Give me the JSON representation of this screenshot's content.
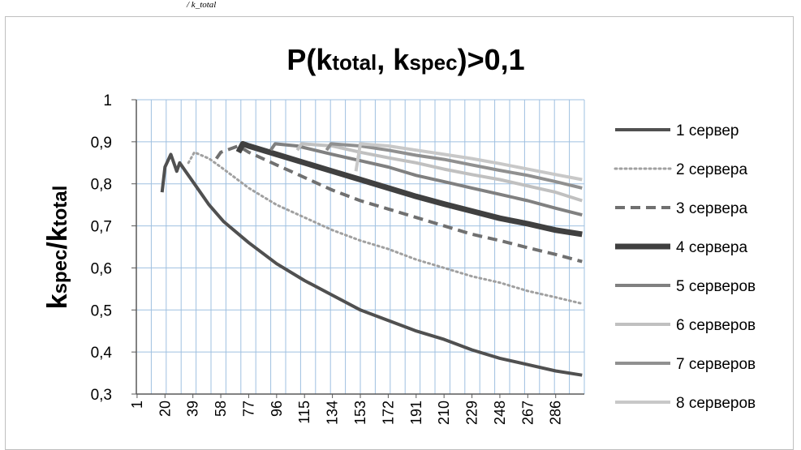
{
  "top_fragment": "/ k_total",
  "chart_data": {
    "type": "line",
    "title": {
      "prefix": "P(k",
      "sub1": "total",
      "mid": ", k",
      "sub2": "spec",
      "suffix": ")>0,1"
    },
    "ylabel": {
      "k1": "k",
      "s1": "spec",
      "slash": "/k",
      "s2": "total"
    },
    "xlabel": "",
    "ylim": [
      0.3,
      1.0
    ],
    "y_ticks": [
      "0,3",
      "0,4",
      "0,5",
      "0,6",
      "0,7",
      "0,8",
      "0,9",
      "1"
    ],
    "x_range": [
      1,
      305
    ],
    "x_ticks": [
      "1",
      "20",
      "39",
      "58",
      "77",
      "96",
      "115",
      "134",
      "153",
      "172",
      "191",
      "210",
      "229",
      "248",
      "267",
      "286"
    ],
    "grid": true,
    "legend_position": "right",
    "series": [
      {
        "name": "1 сервер",
        "color": "#505050",
        "style": "solid",
        "width": 4,
        "x": [
          18,
          20,
          24,
          28,
          30,
          34,
          40,
          50,
          60,
          77,
          96,
          115,
          134,
          153,
          172,
          191,
          210,
          229,
          248,
          267,
          286,
          304
        ],
        "y": [
          0.78,
          0.84,
          0.87,
          0.83,
          0.85,
          0.83,
          0.8,
          0.75,
          0.71,
          0.66,
          0.61,
          0.57,
          0.535,
          0.5,
          0.475,
          0.45,
          0.43,
          0.405,
          0.385,
          0.37,
          0.355,
          0.345
        ]
      },
      {
        "name": "2 сервера",
        "color": "#a0a0a0",
        "style": "dotted",
        "width": 3,
        "x": [
          36,
          40,
          50,
          58,
          77,
          96,
          115,
          134,
          153,
          172,
          191,
          210,
          229,
          248,
          267,
          286,
          304
        ],
        "y": [
          0.85,
          0.875,
          0.86,
          0.84,
          0.79,
          0.75,
          0.72,
          0.69,
          0.665,
          0.645,
          0.62,
          0.6,
          0.58,
          0.565,
          0.545,
          0.53,
          0.515
        ]
      },
      {
        "name": "3 сервера",
        "color": "#707070",
        "style": "dashed",
        "width": 4,
        "x": [
          55,
          58,
          70,
          77,
          96,
          115,
          134,
          153,
          172,
          191,
          210,
          229,
          248,
          267,
          286,
          304
        ],
        "y": [
          0.86,
          0.875,
          0.89,
          0.875,
          0.845,
          0.815,
          0.785,
          0.76,
          0.74,
          0.72,
          0.7,
          0.68,
          0.665,
          0.648,
          0.632,
          0.615
        ]
      },
      {
        "name": "4 сервера",
        "color": "#404040",
        "style": "solid",
        "width": 7,
        "x": [
          70,
          73,
          77,
          96,
          115,
          134,
          153,
          172,
          191,
          210,
          229,
          248,
          267,
          286,
          304
        ],
        "y": [
          0.875,
          0.895,
          0.89,
          0.87,
          0.85,
          0.83,
          0.81,
          0.79,
          0.77,
          0.752,
          0.735,
          0.718,
          0.705,
          0.69,
          0.68
        ]
      },
      {
        "name": "5 серверов",
        "color": "#808080",
        "style": "solid",
        "width": 4,
        "x": [
          92,
          95,
          110,
          134,
          153,
          172,
          191,
          210,
          229,
          248,
          267,
          286,
          304
        ],
        "y": [
          0.88,
          0.895,
          0.89,
          0.87,
          0.855,
          0.84,
          0.82,
          0.805,
          0.79,
          0.775,
          0.76,
          0.742,
          0.726
        ]
      },
      {
        "name": "6 серверов",
        "color": "#c0c0c0",
        "style": "solid",
        "width": 4,
        "x": [
          110,
          113,
          134,
          153,
          172,
          191,
          210,
          229,
          248,
          267,
          286,
          304
        ],
        "y": [
          0.88,
          0.895,
          0.89,
          0.875,
          0.862,
          0.85,
          0.835,
          0.822,
          0.81,
          0.795,
          0.78,
          0.76
        ]
      },
      {
        "name": "7 серверов",
        "color": "#909090",
        "style": "solid",
        "width": 4,
        "x": [
          130,
          133,
          153,
          172,
          191,
          210,
          229,
          248,
          267,
          286,
          304
        ],
        "y": [
          0.88,
          0.895,
          0.89,
          0.88,
          0.868,
          0.858,
          0.845,
          0.832,
          0.82,
          0.805,
          0.79
        ]
      },
      {
        "name": "8 серверов",
        "color": "#c8c8c8",
        "style": "solid",
        "width": 4,
        "x": [
          150,
          153,
          172,
          191,
          210,
          229,
          248,
          267,
          286,
          304
        ],
        "y": [
          0.83,
          0.895,
          0.89,
          0.88,
          0.87,
          0.86,
          0.848,
          0.835,
          0.822,
          0.81
        ]
      }
    ]
  }
}
